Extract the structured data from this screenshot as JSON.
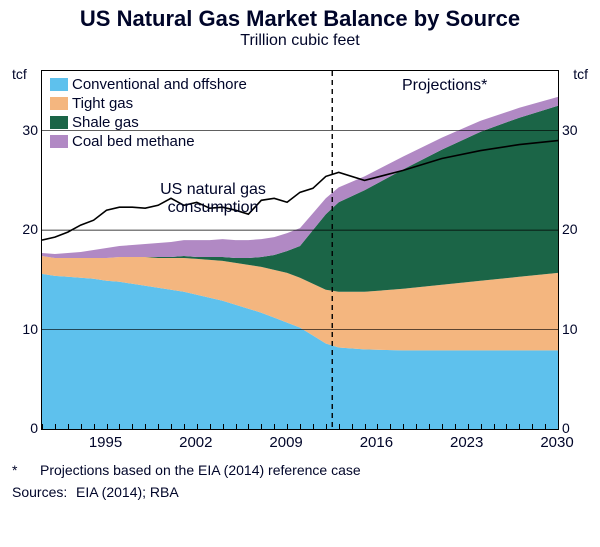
{
  "title": "US Natural Gas Market Balance by Source",
  "subtitle": "Trillion cubic feet",
  "y_unit_left": "tcf",
  "y_unit_right": "tcf",
  "annotation_consumption_line1": "US natural gas",
  "annotation_consumption_line2": "consumption",
  "annotation_projections": "Projections*",
  "footnote_star": "*",
  "footnote_text": "Projections based on the EIA (2014) reference case",
  "sources_label": "Sources:",
  "sources_text": "EIA (2014); RBA",
  "legend": {
    "conventional": "Conventional and offshore",
    "tight": "Tight gas",
    "shale": "Shale gas",
    "coalbed": "Coal bed methane"
  },
  "chart": {
    "type": "stacked-area-with-line",
    "x_range": [
      1990,
      2030
    ],
    "y_range": [
      0,
      36
    ],
    "y_ticks": [
      0,
      10,
      20,
      30
    ],
    "x_ticks": [
      1995,
      2002,
      2009,
      2016,
      2023,
      2030
    ],
    "projection_start": 2012.5,
    "colors": {
      "conventional": "#5ec1ed",
      "tight": "#f4b67f",
      "shale": "#1b6547",
      "coalbed": "#b189c4",
      "consumption_line": "#000000",
      "grid": "#000000",
      "background": "#ffffff"
    },
    "line_width_consumption": 1.6,
    "line_width_divider": 1.4,
    "dash_divider": "5,4",
    "series_years": [
      1990,
      1991,
      1992,
      1993,
      1994,
      1995,
      1996,
      1997,
      1998,
      1999,
      2000,
      2001,
      2002,
      2003,
      2004,
      2005,
      2006,
      2007,
      2008,
      2009,
      2010,
      2011,
      2012,
      2013,
      2015,
      2018,
      2021,
      2024,
      2027,
      2030
    ],
    "conventional": [
      15.6,
      15.4,
      15.3,
      15.2,
      15.1,
      14.9,
      14.8,
      14.6,
      14.4,
      14.2,
      14.0,
      13.8,
      13.5,
      13.2,
      12.9,
      12.5,
      12.1,
      11.7,
      11.2,
      10.7,
      10.2,
      9.4,
      8.6,
      8.2,
      8.0,
      7.9,
      7.9,
      7.9,
      7.9,
      7.9
    ],
    "tight": [
      1.8,
      1.8,
      1.9,
      2.0,
      2.1,
      2.3,
      2.5,
      2.7,
      2.9,
      3.0,
      3.2,
      3.4,
      3.6,
      3.8,
      4.0,
      4.2,
      4.4,
      4.6,
      4.8,
      5.0,
      5.0,
      5.2,
      5.4,
      5.6,
      5.8,
      6.2,
      6.6,
      7.0,
      7.4,
      7.8
    ],
    "shale": [
      0.0,
      0.0,
      0.0,
      0.0,
      0.0,
      0.0,
      0.0,
      0.0,
      0.0,
      0.1,
      0.1,
      0.2,
      0.2,
      0.3,
      0.4,
      0.5,
      0.7,
      1.0,
      1.5,
      2.2,
      3.2,
      5.4,
      7.6,
      9.0,
      10.2,
      12.0,
      13.6,
      15.0,
      16.0,
      16.8
    ],
    "coalbed": [
      0.3,
      0.4,
      0.5,
      0.6,
      0.8,
      1.0,
      1.1,
      1.2,
      1.3,
      1.4,
      1.5,
      1.6,
      1.7,
      1.7,
      1.8,
      1.8,
      1.8,
      1.8,
      1.8,
      1.8,
      1.8,
      1.7,
      1.6,
      1.5,
      1.4,
      1.3,
      1.2,
      1.1,
      1.0,
      0.9
    ],
    "consumption": [
      19.0,
      19.3,
      19.8,
      20.5,
      21.0,
      22.0,
      22.3,
      22.3,
      22.2,
      22.5,
      23.2,
      22.5,
      22.8,
      22.2,
      22.3,
      22.0,
      21.6,
      23.0,
      23.2,
      22.8,
      23.8,
      24.2,
      25.4,
      25.8,
      25.0,
      26.0,
      27.2,
      28.0,
      28.6,
      29.0
    ]
  }
}
